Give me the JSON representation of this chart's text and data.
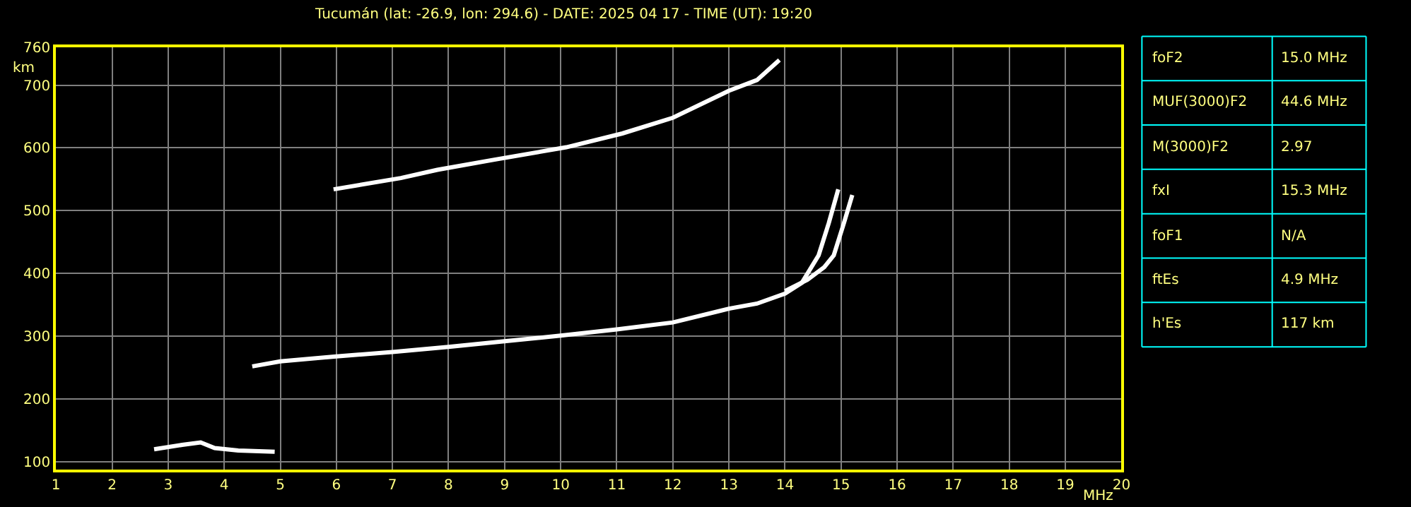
{
  "chart_data": [
    {
      "type": "line",
      "title": "Tucumán (lat: -26.9, lon: 294.6) - DATE: 2025 04 17 - TIME (UT): 19:20",
      "xlabel": "MHz",
      "ylabel": "km",
      "xlim": [
        1,
        20
      ],
      "xticks": [
        1,
        2,
        3,
        4,
        5,
        6,
        7,
        8,
        9,
        10,
        11,
        12,
        13,
        14,
        15,
        16,
        17,
        18,
        19,
        20
      ],
      "ylim": [
        88,
        760
      ],
      "yticks": [
        100,
        200,
        300,
        400,
        500,
        600,
        700,
        760
      ],
      "grid": true,
      "marker": "none",
      "line_style": "solid",
      "series": [
        {
          "color": "#ffffff",
          "x": [
            2.75,
            3.25,
            3.58,
            3.83,
            4.25,
            4.9
          ],
          "values": [
            120,
            127,
            131,
            122,
            118,
            116
          ]
        },
        {
          "color": "#ffffff",
          "x": [
            4.5,
            5,
            6,
            7,
            8,
            9,
            10,
            11,
            12,
            13,
            13.5,
            14,
            14.3,
            14.6,
            14.78,
            14.95
          ],
          "values": [
            252,
            260,
            268,
            275,
            283,
            292,
            301,
            311,
            322,
            344,
            352,
            368,
            385,
            429,
            480,
            534
          ]
        },
        {
          "color": "#ffffff",
          "x": [
            14.0,
            14.4,
            14.7,
            14.87,
            15.05,
            15.2
          ],
          "values": [
            372,
            390,
            410,
            429,
            480,
            525
          ]
        },
        {
          "color": "#ffffff",
          "x": [
            5.95,
            7.15,
            7.8,
            8.8,
            10.1,
            11.1,
            12,
            13,
            13.5,
            13.9
          ],
          "values": [
            534,
            552,
            565,
            581,
            601,
            623,
            648,
            691,
            708,
            740
          ]
        }
      ]
    },
    {
      "type": "other",
      "categories": [
        "foF2",
        "MUF(3000)F2",
        "M(3000)F2",
        "fxI",
        "foF1",
        "ftEs",
        "h'Es"
      ],
      "value_labels": [
        "15.0 MHz",
        "44.6 MHz",
        "2.97",
        "15.3 MHz",
        "N/A",
        "4.9 MHz",
        "117 km"
      ]
    }
  ]
}
